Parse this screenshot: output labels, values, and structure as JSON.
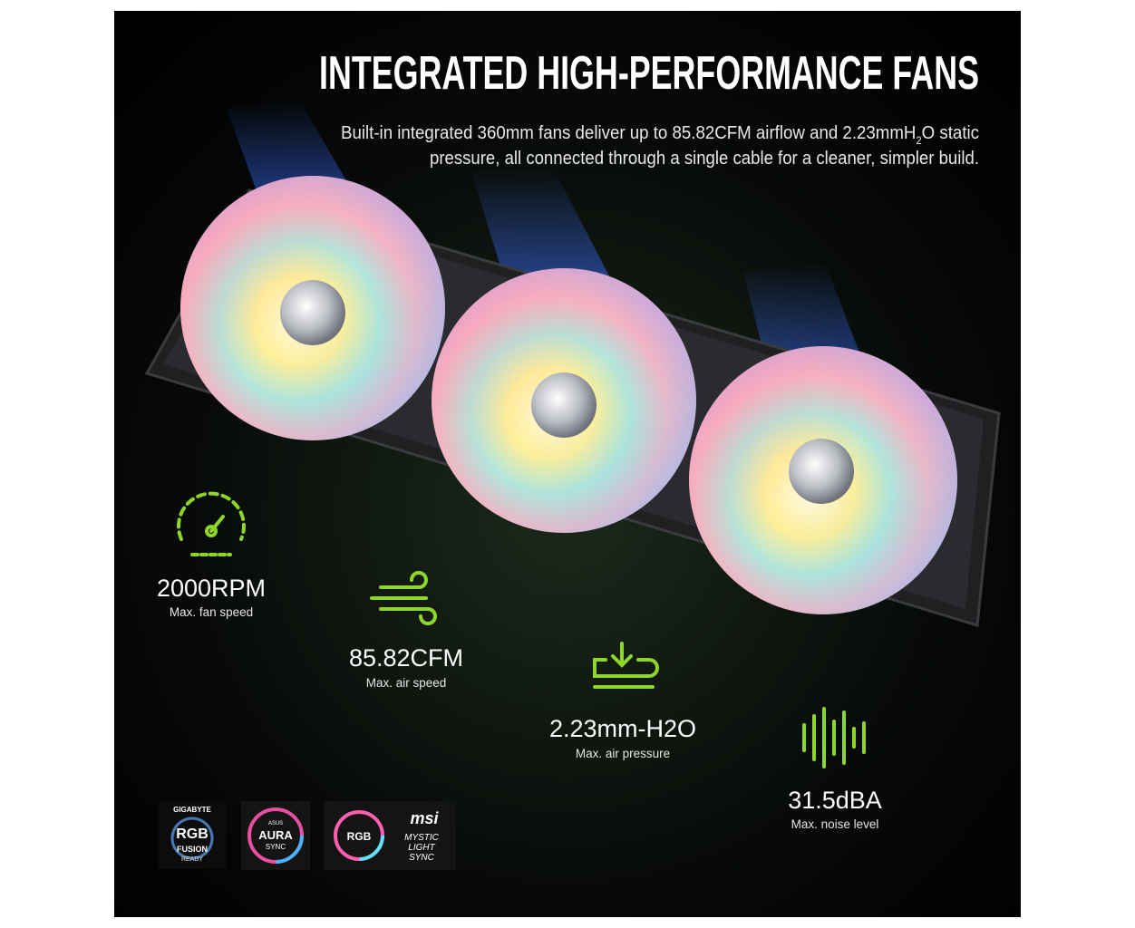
{
  "header": {
    "title": "INTEGRATED HIGH-PERFORMANCE FANS",
    "description": {
      "line1": [
        "Built-in integrated 360mm fans deliver up to 85.82CFM airflow and 2.23mmH",
        "2",
        "O static"
      ],
      "line2": "pressure, all connected through a single cable for a cleaner, simpler build."
    }
  },
  "specs": [
    {
      "value": "2000RPM",
      "label": "Max. fan speed"
    },
    {
      "value": "85.82CFM",
      "label": "Max. air speed"
    },
    {
      "value": "2.23mm-H2O",
      "label": "Max. air pressure"
    },
    {
      "value": "31.5dBA",
      "label": "Max. noise level"
    }
  ],
  "logos": {
    "gigabyte": [
      "GIGABYTE",
      "RGB",
      "FUSION",
      "READY"
    ],
    "asus": [
      "ASUS",
      "AURA",
      "SYNC"
    ],
    "msi": [
      "RGB",
      "msi",
      "MYSTIC",
      "LIGHT",
      "SYNC"
    ]
  }
}
